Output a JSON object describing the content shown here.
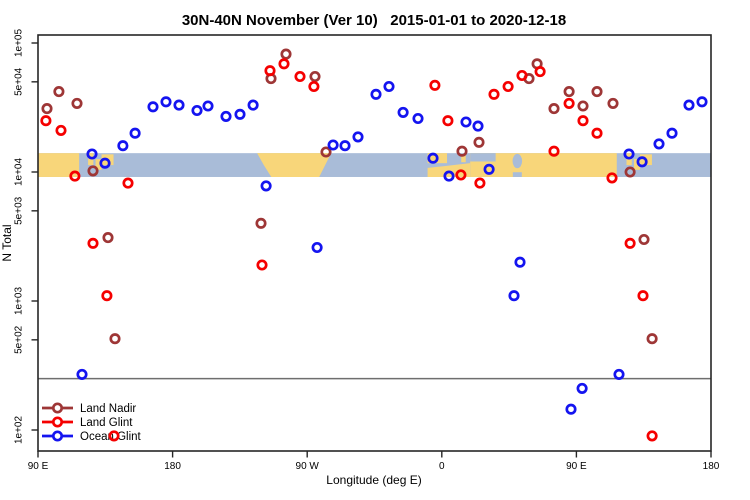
{
  "chart_data": {
    "type": "scatter",
    "title": "30N-40N November (Ver 10)   2015-01-01 to 2020-12-18",
    "xlabel": "Longitude (deg E)",
    "ylabel": "N Total",
    "x_axis": {
      "min": 90,
      "max": 540,
      "wrapped_longitude": true,
      "ticks": [
        {
          "lon": 90,
          "label": "90 E"
        },
        {
          "lon": 180,
          "label": "180"
        },
        {
          "lon": 270,
          "label": "90 W"
        },
        {
          "lon": 360,
          "label": "0"
        },
        {
          "lon": 450,
          "label": "90 E"
        },
        {
          "lon": 540,
          "label": "180"
        }
      ]
    },
    "y_axis": {
      "scale": "log",
      "ticks": [
        {
          "n": 100000,
          "label": "1e+05"
        },
        {
          "n": 50000,
          "label": "5e+04"
        },
        {
          "n": 10000,
          "label": "1e+04"
        },
        {
          "n": 5000,
          "label": "5e+03"
        },
        {
          "n": 1000,
          "label": "1e+03"
        },
        {
          "n": 500,
          "label": "5e+02"
        },
        {
          "n": 100,
          "label": "1e+02"
        }
      ]
    },
    "reference_line": {
      "n": 250,
      "color": "#6e6e6e"
    },
    "legend": {
      "position": "bottom-left",
      "items": [
        "Land Nadir",
        "Land Glint",
        "Ocean Glint"
      ]
    },
    "point_format": [
      "longitude_degE_wrapped_90_to_540",
      "n_total"
    ],
    "series": [
      {
        "name": "Land Nadir",
        "color": "#9E3636",
        "points": [
          [
            104.0,
            42000
          ],
          [
            96.0,
            31000
          ],
          [
            116.1,
            34000
          ],
          [
            255.8,
            82000
          ],
          [
            245.8,
            53000
          ],
          [
            275.2,
            55000
          ],
          [
            282.6,
            14300
          ],
          [
            126.8,
            10200
          ],
          [
            423.7,
            69000
          ],
          [
            418.3,
            53000
          ],
          [
            435.0,
            31000
          ],
          [
            445.1,
            42000
          ],
          [
            454.4,
            32500
          ],
          [
            463.8,
            42000
          ],
          [
            474.5,
            34000
          ],
          [
            373.5,
            14500
          ],
          [
            384.9,
            17000
          ],
          [
            485.9,
            10000
          ],
          [
            136.8,
            3100
          ],
          [
            239.1,
            4000
          ],
          [
            141.5,
            510
          ],
          [
            495.2,
            3000
          ],
          [
            500.6,
            510
          ]
        ]
      },
      {
        "name": "Land Glint",
        "color": "#F50000",
        "points": [
          [
            95.3,
            25000
          ],
          [
            105.4,
            21000
          ],
          [
            254.5,
            69000
          ],
          [
            245.1,
            61000
          ],
          [
            265.2,
            55000
          ],
          [
            274.5,
            46000
          ],
          [
            355.4,
            47000
          ],
          [
            364.1,
            25000
          ],
          [
            394.9,
            40000
          ],
          [
            404.3,
            46000
          ],
          [
            413.6,
            56000
          ],
          [
            425.7,
            60000
          ],
          [
            445.1,
            34000
          ],
          [
            454.4,
            25000
          ],
          [
            463.8,
            20000
          ],
          [
            435.0,
            14500
          ],
          [
            372.8,
            9500
          ],
          [
            385.5,
            8200
          ],
          [
            473.8,
            9000
          ],
          [
            114.7,
            9300
          ],
          [
            150.2,
            8200
          ],
          [
            126.8,
            2800
          ],
          [
            136.1,
            1100
          ],
          [
            239.8,
            1900
          ],
          [
            485.9,
            2800
          ],
          [
            494.5,
            1100
          ],
          [
            140.8,
            90
          ],
          [
            500.6,
            90
          ]
        ]
      },
      {
        "name": "Ocean Glint",
        "color": "#1414F0",
        "points": [
          [
            166.9,
            32000
          ],
          [
            175.6,
            35000
          ],
          [
            184.3,
            33000
          ],
          [
            196.3,
            30000
          ],
          [
            203.7,
            32500
          ],
          [
            215.7,
            27000
          ],
          [
            225.1,
            28000
          ],
          [
            233.8,
            33000
          ],
          [
            154.9,
            20000
          ],
          [
            146.8,
            16000
          ],
          [
            126.1,
            13800
          ],
          [
            134.8,
            11700
          ],
          [
            287.3,
            16200
          ],
          [
            295.3,
            16000
          ],
          [
            304.0,
            18700
          ],
          [
            316.0,
            40000
          ],
          [
            324.7,
            46000
          ],
          [
            334.1,
            29000
          ],
          [
            344.1,
            26000
          ],
          [
            376.2,
            24400
          ],
          [
            384.2,
            22700
          ],
          [
            354.1,
            12800
          ],
          [
            364.8,
            9300
          ],
          [
            391.6,
            10500
          ],
          [
            485.2,
            13800
          ],
          [
            493.9,
            12000
          ],
          [
            505.2,
            16500
          ],
          [
            513.9,
            20000
          ],
          [
            525.3,
            33000
          ],
          [
            534.0,
            35000
          ],
          [
            242.5,
            7800
          ],
          [
            276.6,
            2600
          ],
          [
            412.3,
            2000
          ],
          [
            408.3,
            1100
          ],
          [
            119.4,
            270
          ],
          [
            478.5,
            270
          ],
          [
            453.8,
            210
          ],
          [
            446.4,
            145
          ]
        ]
      }
    ],
    "map_band": {
      "description": "30N-40N land/ocean strip drawn across the plot",
      "ocean_color": "#A9BCD8",
      "land_color": "#F8D67A",
      "n_top": 14000,
      "n_bottom": 9150,
      "land_shapes": [
        {
          "shape": "rect",
          "lon0": 90,
          "lon1": 117.5,
          "f0": 0,
          "f1": 1,
          "note": "east-asia"
        },
        {
          "shape": "rect",
          "lon0": 123.5,
          "lon1": 127,
          "f0": 0,
          "f1": 0.5,
          "note": "korea"
        },
        {
          "shape": "rect",
          "lon0": 128.5,
          "lon1": 132.5,
          "f0": 0.25,
          "f1": 0.7,
          "note": "japan-west"
        },
        {
          "shape": "rect",
          "lon0": 132.5,
          "lon1": 140.5,
          "f0": 0.05,
          "f1": 0.5,
          "note": "japan-east"
        },
        {
          "shape": "poly",
          "pts": [
            [
              236.5,
              0
            ],
            [
              286,
              0
            ],
            [
              282,
              0.5
            ],
            [
              278,
              1
            ],
            [
              246,
              1
            ],
            [
              241,
              0.5
            ]
          ],
          "note": "north-america"
        },
        {
          "shape": "rect",
          "lon0": 350.5,
          "lon1": 363.5,
          "f0": 0,
          "f1": 0.42,
          "note": "iberia"
        },
        {
          "shape": "poly",
          "pts": [
            [
              350.5,
              0.62
            ],
            [
              361,
              0.55
            ],
            [
              379,
              0.42
            ],
            [
              379,
              1
            ],
            [
              350.5,
              1
            ]
          ],
          "note": "northwest-africa"
        },
        {
          "shape": "rect",
          "lon0": 379,
          "lon1": 477,
          "f0": 0,
          "f1": 1,
          "note": "africa-eurasia"
        },
        {
          "shape": "rect",
          "lon0": 373,
          "lon1": 376,
          "f0": 0.05,
          "f1": 0.38,
          "note": "italy-sicily"
        },
        {
          "shape": "rect",
          "lon0": 381.5,
          "lon1": 384.5,
          "f0": 0,
          "f1": 0.3,
          "note": "greece"
        },
        {
          "shape": "rect",
          "lon0": 392,
          "lon1": 394,
          "f0": 0.4,
          "f1": 0.6,
          "note": "cyprus"
        },
        {
          "shape": "rect",
          "lon0": 483.5,
          "lon1": 487,
          "f0": 0,
          "f1": 0.5,
          "note": "korea-wrap"
        },
        {
          "shape": "rect",
          "lon0": 488.5,
          "lon1": 492.5,
          "f0": 0.25,
          "f1": 0.7,
          "note": "japan-west-wrap"
        },
        {
          "shape": "rect",
          "lon0": 492.5,
          "lon1": 500.5,
          "f0": 0.05,
          "f1": 0.5,
          "note": "japan-east-wrap"
        }
      ],
      "ocean_patches": [
        {
          "shape": "rect",
          "lon0": 379,
          "lon1": 396,
          "f0": 0,
          "f1": 0.35,
          "note": "east-mediterranean"
        },
        {
          "shape": "ellipse",
          "lon": 410.5,
          "f": 0.33,
          "rlon": 3.2,
          "rf": 0.3,
          "note": "caspian-sea"
        },
        {
          "shape": "rect",
          "lon0": 407.5,
          "lon1": 413.5,
          "f0": 0.8,
          "f1": 1,
          "note": "persian-gulf"
        }
      ]
    }
  }
}
